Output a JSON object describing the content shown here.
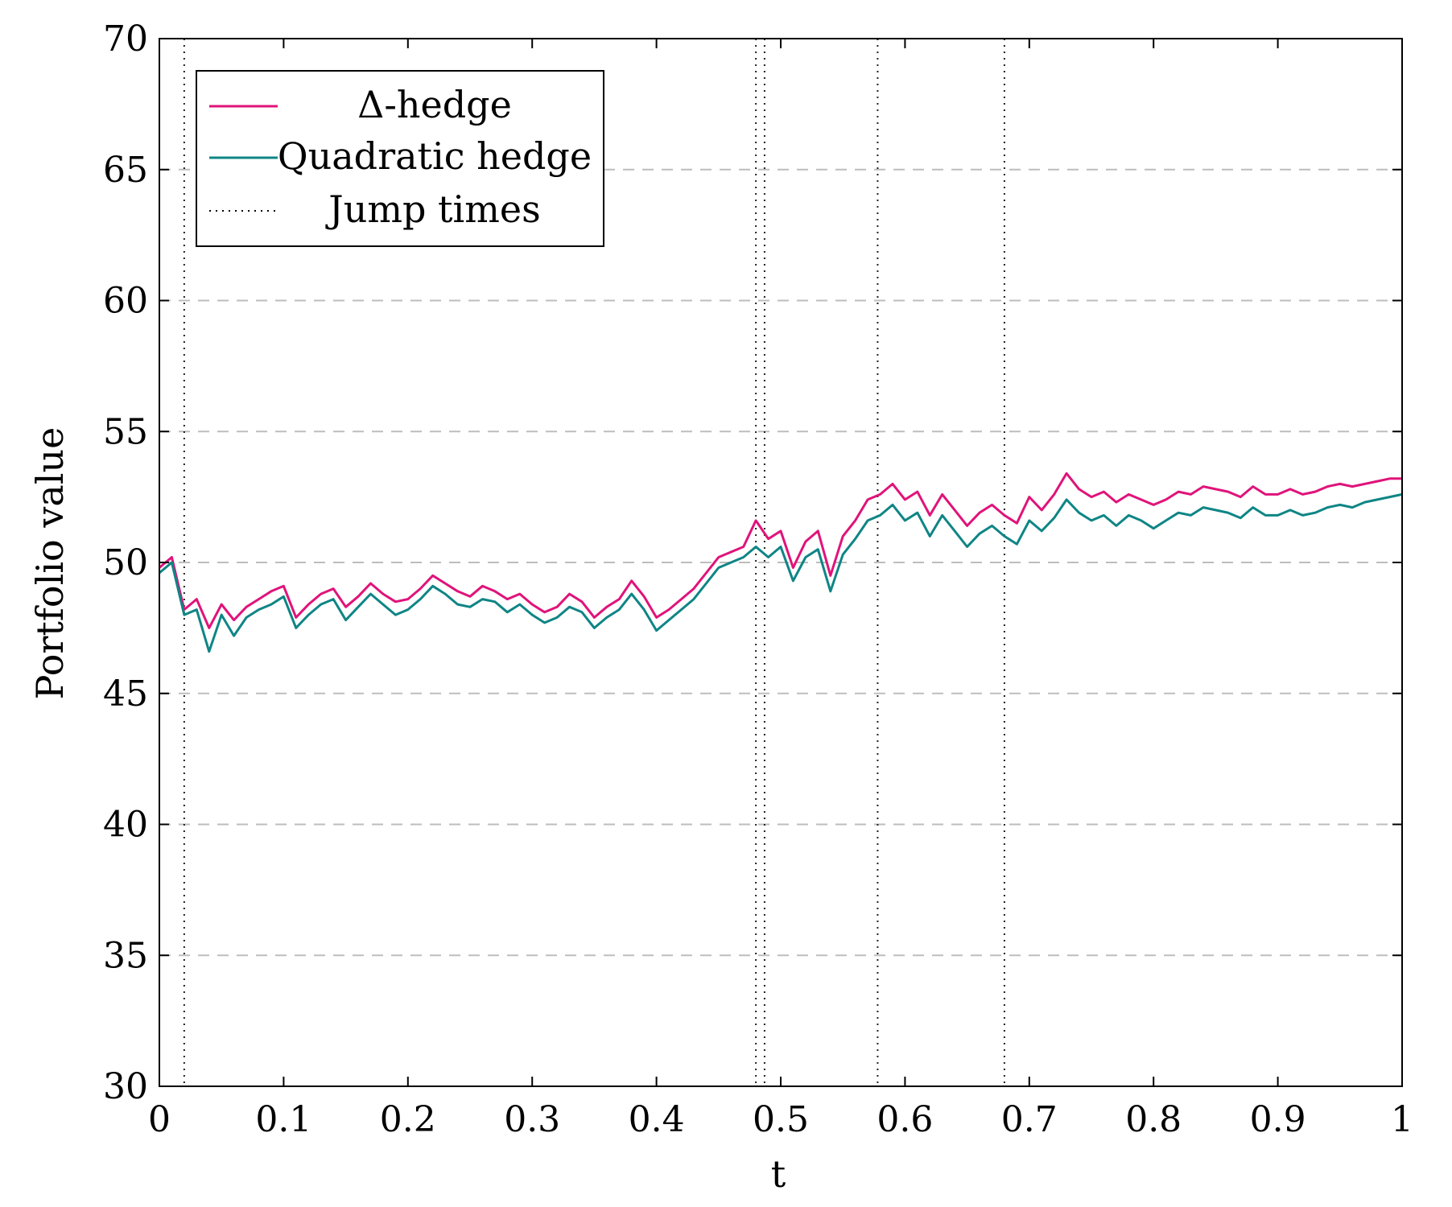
{
  "chart_data": {
    "type": "line",
    "title": "",
    "xlabel": "t",
    "ylabel": "Portfolio value",
    "xlim": [
      0,
      1
    ],
    "ylim": [
      30,
      70
    ],
    "xticks": [
      0,
      0.1,
      0.2,
      0.3,
      0.4,
      0.5,
      0.6,
      0.7,
      0.8,
      0.9,
      1
    ],
    "xtick_labels": [
      "0",
      "0.1",
      "0.2",
      "0.3",
      "0.4",
      "0.5",
      "0.6",
      "0.7",
      "0.8",
      "0.9",
      "1"
    ],
    "yticks": [
      30,
      35,
      40,
      45,
      50,
      55,
      60,
      65,
      70
    ],
    "ytick_labels": [
      "30",
      "35",
      "40",
      "45",
      "50",
      "55",
      "60",
      "65",
      "70"
    ],
    "grid": "horizontal dashed",
    "legend_position": "top-left",
    "jump_times": [
      0.02,
      0.48,
      0.487,
      0.578,
      0.68
    ],
    "series": [
      {
        "name": "Δ-hedge",
        "color": "#e0137a",
        "x": [
          0,
          0.01,
          0.02,
          0.03,
          0.04,
          0.05,
          0.06,
          0.07,
          0.08,
          0.09,
          0.1,
          0.11,
          0.12,
          0.13,
          0.14,
          0.15,
          0.16,
          0.17,
          0.18,
          0.19,
          0.2,
          0.21,
          0.22,
          0.23,
          0.24,
          0.25,
          0.26,
          0.27,
          0.28,
          0.29,
          0.3,
          0.31,
          0.32,
          0.33,
          0.34,
          0.35,
          0.36,
          0.37,
          0.38,
          0.39,
          0.4,
          0.41,
          0.42,
          0.43,
          0.44,
          0.45,
          0.46,
          0.47,
          0.48,
          0.49,
          0.5,
          0.51,
          0.52,
          0.53,
          0.54,
          0.55,
          0.56,
          0.57,
          0.58,
          0.59,
          0.6,
          0.61,
          0.62,
          0.63,
          0.64,
          0.65,
          0.66,
          0.67,
          0.68,
          0.69,
          0.7,
          0.71,
          0.72,
          0.73,
          0.74,
          0.75,
          0.76,
          0.77,
          0.78,
          0.79,
          0.8,
          0.81,
          0.82,
          0.83,
          0.84,
          0.85,
          0.86,
          0.87,
          0.88,
          0.89,
          0.9,
          0.91,
          0.92,
          0.93,
          0.94,
          0.95,
          0.96,
          0.97,
          0.98,
          0.99,
          1
        ],
        "values": [
          49.8,
          50.2,
          48.2,
          48.6,
          47.5,
          48.4,
          47.8,
          48.3,
          48.6,
          48.9,
          49.1,
          47.9,
          48.4,
          48.8,
          49.0,
          48.3,
          48.7,
          49.2,
          48.8,
          48.5,
          48.6,
          49.0,
          49.5,
          49.2,
          48.9,
          48.7,
          49.1,
          48.9,
          48.6,
          48.8,
          48.4,
          48.1,
          48.3,
          48.8,
          48.5,
          47.9,
          48.3,
          48.6,
          49.3,
          48.7,
          47.9,
          48.2,
          48.6,
          49.0,
          49.6,
          50.2,
          50.4,
          50.6,
          51.6,
          50.9,
          51.2,
          49.8,
          50.8,
          51.2,
          49.5,
          51.0,
          51.6,
          52.4,
          52.6,
          53.0,
          52.4,
          52.7,
          51.8,
          52.6,
          52.0,
          51.4,
          51.9,
          52.2,
          51.8,
          51.5,
          52.5,
          52.0,
          52.6,
          53.4,
          52.8,
          52.5,
          52.7,
          52.3,
          52.6,
          52.4,
          52.2,
          52.4,
          52.7,
          52.6,
          52.9,
          52.8,
          52.7,
          52.5,
          52.9,
          52.6,
          52.6,
          52.8,
          52.6,
          52.7,
          52.9,
          53.0,
          52.9,
          53.0,
          53.1,
          53.2,
          53.2
        ]
      },
      {
        "name": "Quadratic hedge",
        "color": "#0f8585",
        "x": [
          0,
          0.01,
          0.02,
          0.03,
          0.04,
          0.05,
          0.06,
          0.07,
          0.08,
          0.09,
          0.1,
          0.11,
          0.12,
          0.13,
          0.14,
          0.15,
          0.16,
          0.17,
          0.18,
          0.19,
          0.2,
          0.21,
          0.22,
          0.23,
          0.24,
          0.25,
          0.26,
          0.27,
          0.28,
          0.29,
          0.3,
          0.31,
          0.32,
          0.33,
          0.34,
          0.35,
          0.36,
          0.37,
          0.38,
          0.39,
          0.4,
          0.41,
          0.42,
          0.43,
          0.44,
          0.45,
          0.46,
          0.47,
          0.48,
          0.49,
          0.5,
          0.51,
          0.52,
          0.53,
          0.54,
          0.55,
          0.56,
          0.57,
          0.58,
          0.59,
          0.6,
          0.61,
          0.62,
          0.63,
          0.64,
          0.65,
          0.66,
          0.67,
          0.68,
          0.69,
          0.7,
          0.71,
          0.72,
          0.73,
          0.74,
          0.75,
          0.76,
          0.77,
          0.78,
          0.79,
          0.8,
          0.81,
          0.82,
          0.83,
          0.84,
          0.85,
          0.86,
          0.87,
          0.88,
          0.89,
          0.9,
          0.91,
          0.92,
          0.93,
          0.94,
          0.95,
          0.96,
          0.97,
          0.98,
          0.99,
          1
        ],
        "values": [
          49.6,
          50.0,
          48.0,
          48.2,
          46.6,
          48.0,
          47.2,
          47.9,
          48.2,
          48.4,
          48.7,
          47.5,
          48.0,
          48.4,
          48.6,
          47.8,
          48.3,
          48.8,
          48.4,
          48.0,
          48.2,
          48.6,
          49.1,
          48.8,
          48.4,
          48.3,
          48.6,
          48.5,
          48.1,
          48.4,
          48.0,
          47.7,
          47.9,
          48.3,
          48.1,
          47.5,
          47.9,
          48.2,
          48.8,
          48.2,
          47.4,
          47.8,
          48.2,
          48.6,
          49.2,
          49.8,
          50.0,
          50.2,
          50.6,
          50.2,
          50.6,
          49.3,
          50.2,
          50.5,
          48.9,
          50.3,
          50.9,
          51.6,
          51.8,
          52.2,
          51.6,
          51.9,
          51.0,
          51.8,
          51.2,
          50.6,
          51.1,
          51.4,
          51.0,
          50.7,
          51.6,
          51.2,
          51.7,
          52.4,
          51.9,
          51.6,
          51.8,
          51.4,
          51.8,
          51.6,
          51.3,
          51.6,
          51.9,
          51.8,
          52.1,
          52.0,
          51.9,
          51.7,
          52.1,
          51.8,
          51.8,
          52.0,
          51.8,
          51.9,
          52.1,
          52.2,
          52.1,
          52.3,
          52.4,
          52.5,
          52.6
        ]
      }
    ]
  }
}
